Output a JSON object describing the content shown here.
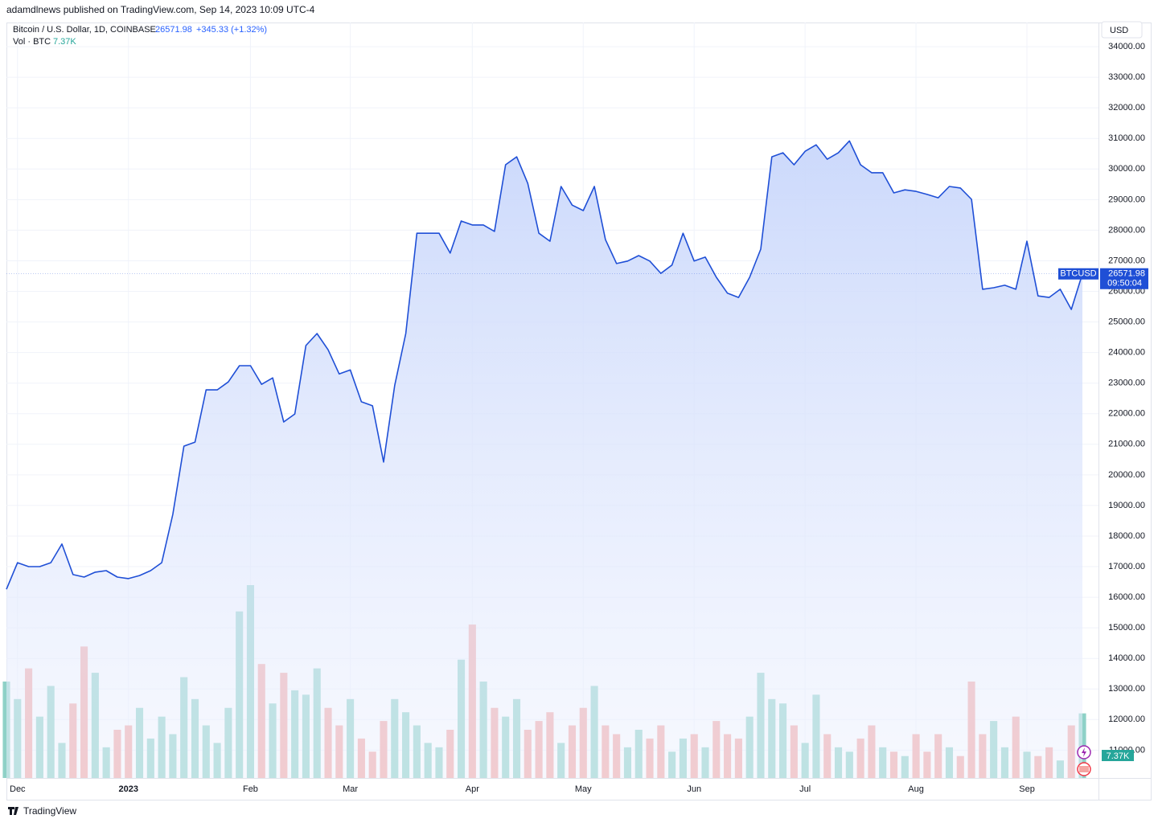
{
  "header": {
    "publisher": "adamdlnews published on TradingView.com, Sep 14, 2023 10:09 UTC-4",
    "symbol": "Bitcoin / U.S. Dollar, 1D, COINBASE",
    "last": "26571.98",
    "change": "+345.33 (+1.32%)",
    "volume_label": "Vol · BTC",
    "volume_last": "7.37K",
    "currency": "USD",
    "countdown": "09:50:04"
  },
  "chart_data": [
    {
      "type": "area",
      "categories": [
        null,
        "Dec",
        null,
        null,
        null,
        null,
        null,
        null,
        null,
        null,
        null,
        "2023",
        null,
        null,
        null,
        null,
        null,
        null,
        null,
        null,
        null,
        null,
        "Feb",
        null,
        null,
        null,
        null,
        null,
        null,
        null,
        null,
        "Mar",
        null,
        null,
        null,
        null,
        null,
        null,
        null,
        null,
        null,
        null,
        "Apr",
        null,
        null,
        null,
        null,
        null,
        null,
        null,
        null,
        null,
        "May",
        null,
        null,
        null,
        null,
        null,
        null,
        null,
        null,
        null,
        "Jun",
        null,
        null,
        null,
        null,
        null,
        null,
        null,
        null,
        null,
        "Jul",
        null,
        null,
        null,
        null,
        null,
        null,
        null,
        null,
        null,
        "Aug",
        null,
        null,
        null,
        null,
        null,
        null,
        null,
        null,
        null,
        "Sep",
        null,
        null,
        null,
        null,
        null
      ],
      "series": [
        {
          "name": "BTCUSD",
          "color": "#1f4fd6",
          "values": [
            16260,
            17130,
            17000,
            17000,
            17130,
            17740,
            16740,
            16660,
            16820,
            16870,
            16660,
            16610,
            16710,
            16870,
            17130,
            18710,
            20940,
            21070,
            22780,
            22780,
            23040,
            23570,
            23570,
            22960,
            23170,
            21730,
            21990,
            24230,
            24620,
            24090,
            23300,
            23430,
            22390,
            22260,
            20420,
            22920,
            24620,
            27900,
            27900,
            27900,
            27250,
            28300,
            28170,
            28170,
            27960,
            30140,
            30400,
            29530,
            27900,
            27640,
            29430,
            28820,
            28640,
            29430,
            27690,
            26910,
            26990,
            27170,
            26990,
            26590,
            26860,
            27900,
            26990,
            27120,
            26460,
            25940,
            25800,
            26460,
            27380,
            30400,
            30530,
            30140,
            30580,
            30790,
            30320,
            30530,
            30920,
            30140,
            29880,
            29880,
            29220,
            29320,
            29270,
            29170,
            29060,
            29430,
            29380,
            29010,
            26070,
            26120,
            26200,
            26070,
            27640,
            25850,
            25800,
            26070,
            25410,
            26571.98
          ]
        }
      ],
      "ylim": [
        10090,
        34790
      ],
      "yticks": [
        {
          "value": 11000,
          "label": "11000.00"
        },
        {
          "value": 12000,
          "label": "12000.00"
        },
        {
          "value": 13000,
          "label": "13000.00"
        },
        {
          "value": 14000,
          "label": "14000.00"
        },
        {
          "value": 15000,
          "label": "15000.00"
        },
        {
          "value": 16000,
          "label": "16000.00"
        },
        {
          "value": 17000,
          "label": "17000.00"
        },
        {
          "value": 18000,
          "label": "18000.00"
        },
        {
          "value": 19000,
          "label": "19000.00"
        },
        {
          "value": 20000,
          "label": "20000.00"
        },
        {
          "value": 21000,
          "label": "21000.00"
        },
        {
          "value": 22000,
          "label": "22000.00"
        },
        {
          "value": 23000,
          "label": "23000.00"
        },
        {
          "value": 24000,
          "label": "24000.00"
        },
        {
          "value": 25000,
          "label": "25000.00"
        },
        {
          "value": 26000,
          "label": "26000.00"
        },
        {
          "value": 27000,
          "label": "27000.00"
        },
        {
          "value": 28000,
          "label": "28000.00"
        },
        {
          "value": 29000,
          "label": "29000.00"
        },
        {
          "value": 30000,
          "label": "30000.00"
        },
        {
          "value": 31000,
          "label": "31000.00"
        },
        {
          "value": 32000,
          "label": "32000.00"
        },
        {
          "value": 33000,
          "label": "33000.00"
        },
        {
          "value": 34000,
          "label": "34000.00"
        }
      ],
      "grid": true
    },
    {
      "type": "bar",
      "up_color": "#8ed1c7",
      "down_color": "#f4a5a2",
      "values": [
        11000,
        9000,
        12500,
        7000,
        10500,
        4000,
        8500,
        15000,
        12000,
        3500,
        5500,
        6000,
        8000,
        4500,
        7000,
        5000,
        11500,
        9000,
        6000,
        4000,
        8000,
        19000,
        22000,
        13000,
        8500,
        12000,
        10000,
        9500,
        12500,
        8000,
        6000,
        9000,
        4500,
        3000,
        6500,
        9000,
        7500,
        6000,
        4000,
        3500,
        5500,
        13500,
        17500,
        11000,
        8000,
        7000,
        9000,
        5500,
        6500,
        7500,
        4000,
        6000,
        8000,
        10500,
        6000,
        5000,
        3500,
        5500,
        4500,
        6000,
        3000,
        4500,
        5000,
        3500,
        6500,
        5000,
        4500,
        7000,
        12000,
        9000,
        8500,
        6000,
        4000,
        9500,
        5000,
        3500,
        3000,
        4500,
        6000,
        3500,
        3000,
        2500,
        5000,
        3000,
        5000,
        3500,
        2500,
        11000,
        5000,
        6500,
        3500,
        7000,
        3000,
        2500,
        3500,
        2000,
        6000,
        7370
      ]
    }
  ],
  "footer": {
    "brand": "TradingView"
  }
}
